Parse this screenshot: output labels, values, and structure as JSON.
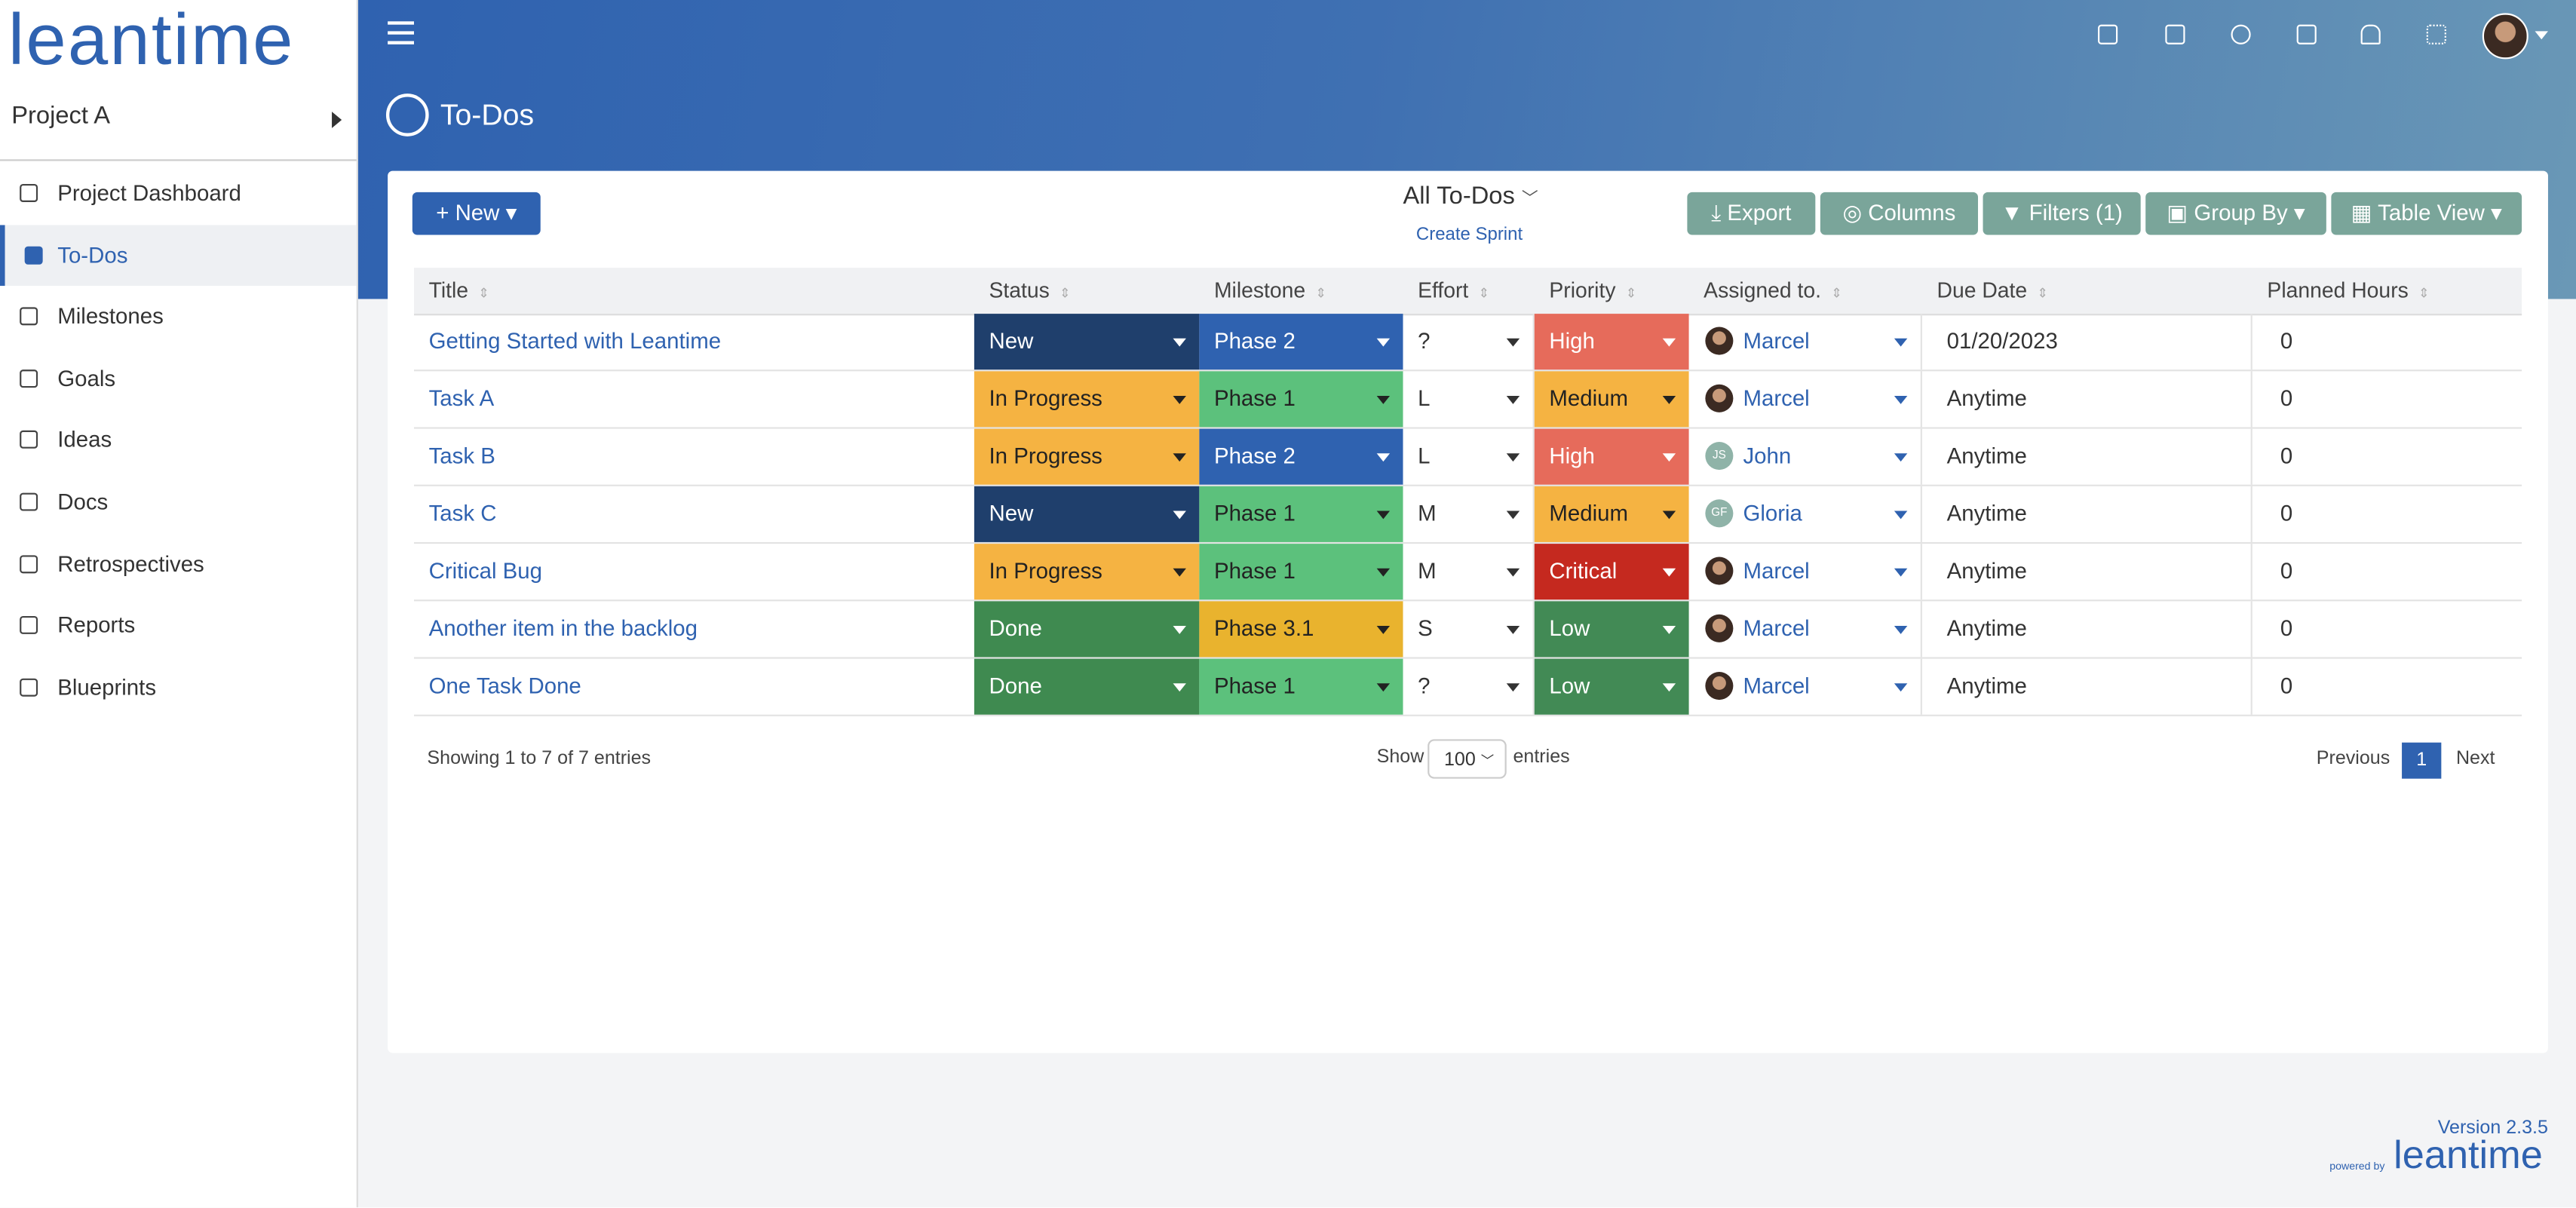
{
  "logo": "leantime",
  "project": "Project A",
  "nav": [
    "Project Dashboard",
    "To-Dos",
    "Milestones",
    "Goals",
    "Ideas",
    "Docs",
    "Retrospectives",
    "Reports",
    "Blueprints"
  ],
  "page_title": "To-Dos",
  "toolbar": {
    "new": "New",
    "view": "All To-Dos",
    "create_sprint": "Create Sprint",
    "export": "Export",
    "columns": "Columns",
    "filters": "Filters (1)",
    "group_by": "Group By",
    "table_view": "Table View"
  },
  "table": {
    "headers": [
      "Title",
      "Status",
      "Milestone",
      "Effort",
      "Priority",
      "Assigned to.",
      "Due Date",
      "Planned Hours"
    ],
    "rows": [
      {
        "title": "Getting Started with Leantime",
        "status": "New",
        "status_color": "#1f3f6c",
        "milestone": "Phase 2",
        "milestone_color": "#2f62b0",
        "effort": "?",
        "priority": "High",
        "priority_color": "#e66b5b",
        "assignee": "Marcel",
        "due": "01/20/2023",
        "hours": "0"
      },
      {
        "title": "Task A",
        "status": "In Progress",
        "status_color": "#f5b342",
        "milestone": "Phase 1",
        "milestone_color": "#5cc17c",
        "effort": "L",
        "priority": "Medium",
        "priority_color": "#f5b342",
        "assignee": "Marcel",
        "due": "Anytime",
        "hours": "0"
      },
      {
        "title": "Task B",
        "status": "In Progress",
        "status_color": "#f5b342",
        "milestone": "Phase 2",
        "milestone_color": "#2f62b0",
        "effort": "L",
        "priority": "High",
        "priority_color": "#e66b5b",
        "assignee": "John",
        "assignee_initials": "JS",
        "due": "Anytime",
        "hours": "0"
      },
      {
        "title": "Task C",
        "status": "New",
        "status_color": "#1f3f6c",
        "milestone": "Phase 1",
        "milestone_color": "#5cc17c",
        "effort": "M",
        "priority": "Medium",
        "priority_color": "#f5b342",
        "assignee": "Gloria",
        "assignee_initials": "GF",
        "due": "Anytime",
        "hours": "0"
      },
      {
        "title": "Critical Bug",
        "status": "In Progress",
        "status_color": "#f5b342",
        "milestone": "Phase 1",
        "milestone_color": "#5cc17c",
        "effort": "M",
        "priority": "Critical",
        "priority_color": "#c5291f",
        "assignee": "Marcel",
        "due": "Anytime",
        "hours": "0"
      },
      {
        "title": "Another item in the backlog",
        "status": "Done",
        "status_color": "#3f8a50",
        "milestone": "Phase 3.1",
        "milestone_color": "#e9b32e",
        "effort": "S",
        "priority": "Low",
        "priority_color": "#428a55",
        "assignee": "Marcel",
        "due": "Anytime",
        "hours": "0"
      },
      {
        "title": "One Task Done",
        "status": "Done",
        "status_color": "#3f8a50",
        "milestone": "Phase 1",
        "milestone_color": "#5cc17c",
        "effort": "?",
        "priority": "Low",
        "priority_color": "#428a55",
        "assignee": "Marcel",
        "due": "Anytime",
        "hours": "0"
      }
    ]
  },
  "footer": {
    "info": "Showing 1 to 7 of 7 entries",
    "show": "Show",
    "page_size": "100",
    "entries": "entries",
    "previous": "Previous",
    "page": "1",
    "next": "Next"
  },
  "version": "Version 2.3.5",
  "powered_by": "powered by"
}
